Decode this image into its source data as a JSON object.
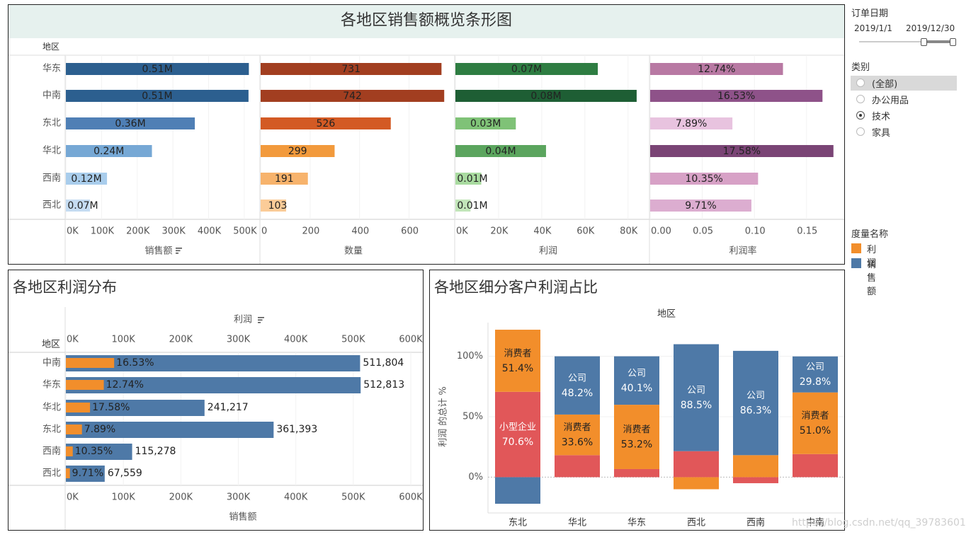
{
  "regions_row_label": "地区",
  "chart_data": [
    {
      "id": "overview",
      "type": "bar",
      "title": "各地区销售额概览条形图",
      "row_field": "地区",
      "categories": [
        "华东",
        "中南",
        "东北",
        "华北",
        "西南",
        "西北"
      ],
      "panels": [
        {
          "name": "销售额",
          "axis_label": "销售额",
          "sorted": true,
          "values": [
            512813,
            511804,
            361393,
            241217,
            115278,
            67559
          ],
          "labels": [
            "0.51M",
            "0.51M",
            "0.36M",
            "0.24M",
            "0.12M",
            "0.07M"
          ],
          "range": [
            0,
            520000
          ],
          "ticks": [
            "0K",
            "100K",
            "200K",
            "300K",
            "400K",
            "500K"
          ],
          "tick_values": [
            0,
            100000,
            200000,
            300000,
            400000,
            500000
          ],
          "colors": [
            "#2c5f8f",
            "#2c5f8f",
            "#4f7fb5",
            "#76a8d5",
            "#a9cdec",
            "#c5dcf2"
          ]
        },
        {
          "name": "数量",
          "axis_label": "数量",
          "sorted": false,
          "values": [
            731,
            742,
            526,
            299,
            191,
            103
          ],
          "labels": [
            "731",
            "742",
            "526",
            "299",
            "191",
            "103"
          ],
          "range": [
            0,
            750
          ],
          "ticks": [
            "0",
            "200",
            "400",
            "600"
          ],
          "tick_values": [
            0,
            200,
            400,
            600
          ],
          "colors": [
            "#a23e20",
            "#a23e20",
            "#d35a24",
            "#f29a3c",
            "#f7b36c",
            "#fbcc98"
          ]
        },
        {
          "name": "利润",
          "axis_label": "利润",
          "sorted": false,
          "values": [
            66000,
            84000,
            28000,
            42000,
            12000,
            7000
          ],
          "labels": [
            "0.07M",
            "0.08M",
            "0.03M",
            "0.04M",
            "0.01M",
            "0.01M"
          ],
          "range": [
            0,
            86000
          ],
          "ticks": [
            "0K",
            "20K",
            "40K",
            "60K",
            "80K"
          ],
          "tick_values": [
            0,
            20000,
            40000,
            60000,
            80000
          ],
          "colors": [
            "#2e7d42",
            "#1e5e34",
            "#7fc277",
            "#5ba55e",
            "#a9dba0",
            "#c2e6b9"
          ]
        },
        {
          "name": "利润率",
          "axis_label": "利润率",
          "sorted": false,
          "values": [
            0.1274,
            0.1653,
            0.0789,
            0.1758,
            0.1035,
            0.0971
          ],
          "labels": [
            "12.74%",
            "16.53%",
            "7.89%",
            "17.58%",
            "10.35%",
            "9.71%"
          ],
          "range": [
            0,
            0.178
          ],
          "ticks": [
            "0.00",
            "0.05",
            "0.10",
            "0.15"
          ],
          "tick_values": [
            0,
            0.05,
            0.1,
            0.15
          ],
          "colors": [
            "#b879a3",
            "#8e5289",
            "#e8c3df",
            "#7a4475",
            "#d7a1c6",
            "#dcadd0"
          ]
        }
      ]
    },
    {
      "id": "profit_distribution",
      "type": "bar",
      "title": "各地区利润分布",
      "row_field": "地区",
      "top_axis_label": "利润",
      "bottom_axis_label": "销售额",
      "categories": [
        "中南",
        "华东",
        "华北",
        "东北",
        "西南",
        "西北"
      ],
      "series": [
        {
          "name": "销售额",
          "color": "#4e79a7",
          "values": [
            511804,
            512813,
            241217,
            361393,
            115278,
            67559
          ],
          "labels": [
            "511,804",
            "512,813",
            "241,217",
            "361,393",
            "115,278",
            "67,559"
          ]
        },
        {
          "name": "利润",
          "color": "#f28e2b",
          "values": [
            84000,
            66000,
            42000,
            28000,
            12000,
            7000
          ],
          "labels": [
            "16.53%",
            "12.74%",
            "17.58%",
            "7.89%",
            "10.35%",
            "9.71%"
          ]
        }
      ],
      "range": [
        0,
        600000
      ],
      "ticks": [
        "0K",
        "100K",
        "200K",
        "300K",
        "400K",
        "500K",
        "600K"
      ],
      "tick_values": [
        0,
        100000,
        200000,
        300000,
        400000,
        500000,
        600000
      ]
    },
    {
      "id": "segment_share",
      "type": "bar",
      "stacked": true,
      "title": "各地区细分客户利润占比",
      "column_field": "地区",
      "ylabel": "利润 的总计 %",
      "ylim": [
        -0.22,
        1.22
      ],
      "yticks": [
        "100%",
        "50%",
        "0%"
      ],
      "ytick_values": [
        1.0,
        0.5,
        0
      ],
      "categories": [
        "东北",
        "华北",
        "华东",
        "西北",
        "西南",
        "中南"
      ],
      "segments": [
        {
          "name": "小型企业",
          "color": "#e15759"
        },
        {
          "name": "消费者",
          "color": "#f28e2b"
        },
        {
          "name": "公司",
          "color": "#4e79a7"
        }
      ],
      "stacks": [
        [
          {
            "seg": "公司",
            "value": -0.22,
            "label": "",
            "pct": ""
          },
          {
            "seg": "小型企业",
            "value": 0.706,
            "label": "小型企业",
            "pct": "70.6%"
          },
          {
            "seg": "消费者",
            "value": 0.514,
            "label": "消费者",
            "pct": "51.4%"
          }
        ],
        [
          {
            "seg": "小型企业",
            "value": 0.182,
            "label": "",
            "pct": ""
          },
          {
            "seg": "消费者",
            "value": 0.336,
            "label": "消费者",
            "pct": "33.6%"
          },
          {
            "seg": "公司",
            "value": 0.482,
            "label": "公司",
            "pct": "48.2%"
          }
        ],
        [
          {
            "seg": "小型企业",
            "value": 0.067,
            "label": "",
            "pct": ""
          },
          {
            "seg": "消费者",
            "value": 0.532,
            "label": "消费者",
            "pct": "53.2%"
          },
          {
            "seg": "公司",
            "value": 0.401,
            "label": "公司",
            "pct": "40.1%"
          }
        ],
        [
          {
            "seg": "消费者",
            "value": -0.1,
            "label": "",
            "pct": ""
          },
          {
            "seg": "小型企业",
            "value": 0.215,
            "label": "",
            "pct": ""
          },
          {
            "seg": "公司",
            "value": 0.885,
            "label": "公司",
            "pct": "88.5%"
          }
        ],
        [
          {
            "seg": "小型企业",
            "value": -0.05,
            "label": "",
            "pct": ""
          },
          {
            "seg": "消费者",
            "value": 0.182,
            "label": "",
            "pct": ""
          },
          {
            "seg": "公司",
            "value": 0.863,
            "label": "公司",
            "pct": "86.3%"
          }
        ],
        [
          {
            "seg": "小型企业",
            "value": 0.191,
            "label": "",
            "pct": ""
          },
          {
            "seg": "消费者",
            "value": 0.51,
            "label": "消费者",
            "pct": "51.0%"
          },
          {
            "seg": "公司",
            "value": 0.298,
            "label": "公司",
            "pct": "29.8%"
          }
        ]
      ]
    }
  ],
  "sidebar": {
    "date_filter": {
      "title": "订单日期",
      "start": "2019/1/1",
      "end": "2019/12/30"
    },
    "category_filter": {
      "title": "类别",
      "options": [
        {
          "label": "(全部)",
          "selected": false,
          "highlight": true
        },
        {
          "label": "办公用品",
          "selected": false,
          "highlight": false
        },
        {
          "label": "技术",
          "selected": true,
          "highlight": false
        },
        {
          "label": "家具",
          "selected": false,
          "highlight": false
        }
      ]
    },
    "legend": {
      "title": "度量名称",
      "items": [
        {
          "label": "利润",
          "color": "#f28e2b"
        },
        {
          "label": "销售额",
          "color": "#4e79a7"
        }
      ]
    }
  },
  "watermark": "https://blog.csdn.net/qq_39783601"
}
